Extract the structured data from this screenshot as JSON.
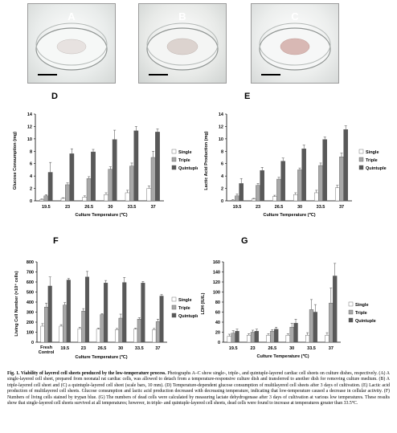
{
  "photos": [
    {
      "letter": "A"
    },
    {
      "letter": "B"
    },
    {
      "letter": "C"
    }
  ],
  "panels": {
    "D": "D",
    "E": "E",
    "F": "F",
    "G": "G"
  },
  "chart_data": [
    {
      "panel": "D",
      "type": "bar",
      "ylabel": "Glucose Consumption (mg)",
      "xlabel": "Culture Temperature (℃)",
      "ylim": [
        0,
        14
      ],
      "yticks": [
        0,
        2,
        4,
        6,
        8,
        10,
        12,
        14
      ],
      "categories": [
        "19.5",
        "23",
        "26.5",
        "30",
        "33.5",
        "37"
      ],
      "series": [
        {
          "name": "Single",
          "color": "#ffffff",
          "values": [
            0.2,
            0.4,
            0.6,
            1.0,
            1.3,
            2.0
          ],
          "errors": [
            0.1,
            0.1,
            0.2,
            0.3,
            0.4,
            0.4
          ]
        },
        {
          "name": "Triple",
          "color": "#a8a8a8",
          "values": [
            0.8,
            2.6,
            3.6,
            5.1,
            5.6,
            7.0
          ],
          "errors": [
            0.2,
            0.3,
            0.3,
            0.4,
            0.5,
            1.0
          ]
        },
        {
          "name": "Quintuple",
          "color": "#595959",
          "values": [
            4.6,
            7.6,
            7.9,
            9.9,
            11.3,
            11.1
          ],
          "errors": [
            1.6,
            0.8,
            0.4,
            1.5,
            0.7,
            0.5
          ]
        }
      ]
    },
    {
      "panel": "E",
      "type": "bar",
      "ylabel": "Lactic Acid Production (mg)",
      "xlabel": "Culture Temperature (℃)",
      "ylim": [
        0,
        14
      ],
      "yticks": [
        0,
        2,
        4,
        6,
        8,
        10,
        12,
        14
      ],
      "categories": [
        "19.5",
        "23",
        "26.5",
        "30",
        "33.5",
        "37"
      ],
      "series": [
        {
          "name": "Single",
          "color": "#ffffff",
          "values": [
            0.1,
            0.3,
            0.7,
            1.0,
            1.3,
            2.1
          ],
          "errors": [
            0.1,
            0.1,
            0.2,
            0.3,
            0.4,
            0.4
          ]
        },
        {
          "name": "Triple",
          "color": "#a8a8a8",
          "values": [
            0.8,
            2.5,
            3.5,
            5.0,
            5.7,
            7.1
          ],
          "errors": [
            0.3,
            0.3,
            0.3,
            0.3,
            0.4,
            0.6
          ]
        },
        {
          "name": "Quintuple",
          "color": "#595959",
          "values": [
            2.8,
            4.9,
            6.4,
            8.4,
            9.9,
            11.5
          ],
          "errors": [
            0.8,
            0.5,
            0.5,
            0.6,
            0.4,
            0.6
          ]
        }
      ]
    },
    {
      "panel": "F",
      "type": "bar",
      "ylabel": "Living Cell Number (×10⁴ cells)",
      "xlabel": "Culture Temperature (℃)",
      "ylim": [
        0,
        800
      ],
      "yticks": [
        0,
        100,
        200,
        300,
        400,
        500,
        600,
        700,
        800
      ],
      "categories": [
        "Fresh Control",
        "19.5",
        "23",
        "26.5",
        "30",
        "33.5",
        "37"
      ],
      "series": [
        {
          "name": "Single",
          "color": "#ffffff",
          "values": [
            160,
            160,
            135,
            130,
            125,
            130,
            125
          ],
          "errors": [
            25,
            15,
            15,
            10,
            12,
            10,
            12
          ]
        },
        {
          "name": "Triple",
          "color": "#a8a8a8",
          "values": [
            350,
            370,
            310,
            275,
            240,
            230,
            205
          ],
          "errors": [
            40,
            25,
            25,
            10,
            40,
            15,
            25
          ]
        },
        {
          "name": "Quintuple",
          "color": "#595959",
          "values": [
            560,
            620,
            650,
            590,
            595,
            590,
            460
          ],
          "errors": [
            90,
            15,
            55,
            25,
            50,
            15,
            15
          ]
        }
      ]
    },
    {
      "panel": "G",
      "type": "bar",
      "ylabel": "LDH (IU/L)",
      "xlabel": "Culture Temperature (℃)",
      "ylim": [
        0,
        160
      ],
      "yticks": [
        0,
        20,
        40,
        60,
        80,
        100,
        120,
        140,
        160
      ],
      "categories": [
        "19.5",
        "23",
        "26.5",
        "30",
        "33.5",
        "37"
      ],
      "series": [
        {
          "name": "Single",
          "color": "#ffffff",
          "values": [
            12,
            14,
            14,
            14,
            14,
            14
          ],
          "errors": [
            4,
            3,
            3,
            3,
            5,
            5
          ]
        },
        {
          "name": "Triple",
          "color": "#a8a8a8",
          "values": [
            18,
            20,
            22,
            30,
            65,
            78
          ],
          "errors": [
            5,
            4,
            3,
            8,
            20,
            30
          ]
        },
        {
          "name": "Quintuple",
          "color": "#595959",
          "values": [
            22,
            22,
            26,
            38,
            60,
            132
          ],
          "errors": [
            4,
            4,
            4,
            8,
            15,
            25
          ]
        }
      ]
    }
  ],
  "caption": {
    "label": "Fig. 1. Viability of layered cell sheets produced by the low-temperature process.",
    "text": " Photographs A–C show single-, triple-, and quintuple-layered cardiac cell sheets on culture dishes, respectively. (A) A single-layered cell sheet, prepared from neonatal rat cardiac cells, was allowed to detach from a temperature-responsive culture dish and transferred to another dish for removing culture medium. (B) A triple-layered cell sheet and (C) a quintuple-layered cell sheet (scale bars, 10 mm). (D) Temperature-dependent glucose consumption of multilayered cell sheets after 3 days of cultivation. (E) Lactic acid production of multilayered cell sheets. Glucose consumption and lactic acid production decreased with decreasing temperature, indicating that low-temperature caused a decrease in cellular activity. (F) Numbers of living cells stained by trypan blue. (G) The numbers of dead cells were calculated by measuring lactate dehydrogenase after 3 days of cultivation at various low temperatures. These results show that single-layered cell sheets survived at all temperatures; however, in triple- and quintuple-layered cell sheets, dead cells were found to increase at temperatures greater than 33.5°C."
  }
}
